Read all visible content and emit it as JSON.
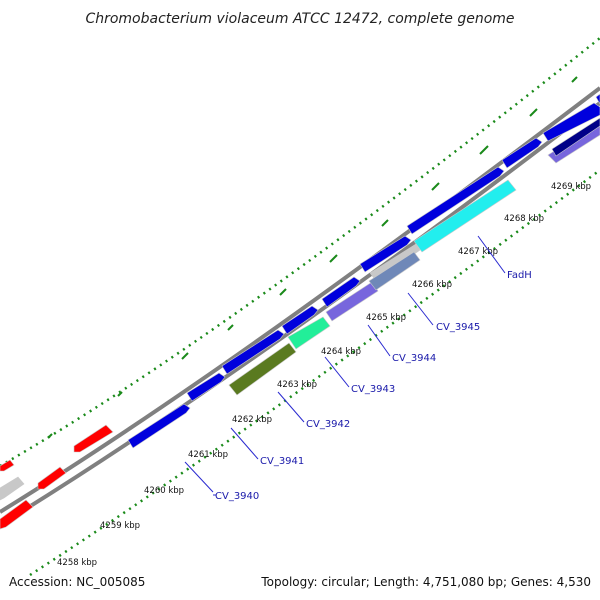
{
  "title": "Chromobacterium violaceum ATCC 12472, complete genome",
  "footer": {
    "accession": "Accession: NC_005085",
    "stats": "Topology: circular; Length: 4,751,080 bp; Genes: 4,530"
  },
  "kbp_labels": [
    "4258 kbp",
    "4259 kbp",
    "4260 kbp",
    "4261 kbp",
    "4262 kbp",
    "4263 kbp",
    "4264 kbp",
    "4265 kbp",
    "4266 kbp",
    "4267 kbp",
    "4268 kbp",
    "4269 kbp"
  ],
  "gene_labels": [
    "CV_3940",
    "CV_3941",
    "CV_3942",
    "CV_3943",
    "CV_3944",
    "CV_3945",
    "FadH"
  ],
  "colors": {
    "cds_plus": "#0000dd",
    "cds_minus": "#ff0000",
    "gray_feature": "#c8c8c8",
    "cyan_feature": "#22eeee",
    "spring_green_feature": "#22ee99",
    "olive_feature": "#5a7a20",
    "lavender_feature": "#7766dd",
    "navy_feature": "#000088",
    "backbone": "#808080",
    "gc_ticks": "#1a8a1a",
    "label_text": "#1a1aaa"
  }
}
